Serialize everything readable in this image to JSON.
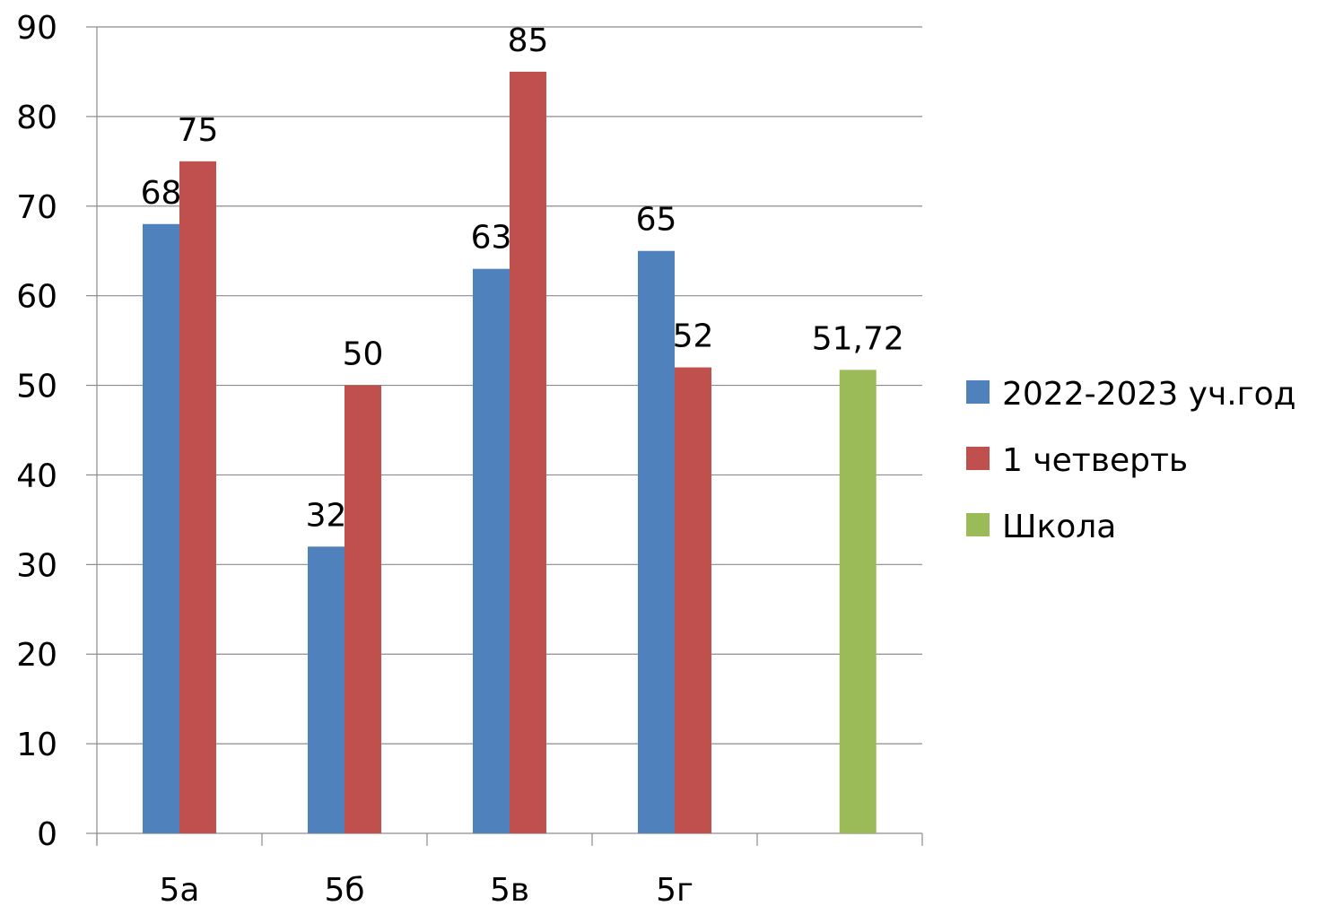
{
  "chart_data": {
    "type": "bar",
    "title": "",
    "xlabel": "",
    "ylabel": "",
    "categories": [
      "5а",
      "5б",
      "5в",
      "5г",
      ""
    ],
    "series": [
      {
        "name": "2022-2023 уч.год",
        "color": "#4f81bd",
        "values": [
          68,
          32,
          63,
          65,
          null
        ],
        "labels": [
          "68",
          "32",
          "63",
          "65",
          ""
        ]
      },
      {
        "name": "1 четверть",
        "color": "#c0504d",
        "values": [
          75,
          50,
          85,
          52,
          null
        ],
        "labels": [
          "75",
          "50",
          "85",
          "52",
          ""
        ]
      },
      {
        "name": "Школа",
        "color": "#9bbb59",
        "values": [
          null,
          null,
          null,
          null,
          51.72
        ],
        "labels": [
          "",
          "",
          "",
          "",
          "51,72"
        ]
      }
    ],
    "ylim": [
      0,
      90
    ],
    "yticks": [
      "0",
      "10",
      "20",
      "30",
      "40",
      "50",
      "60",
      "70",
      "80",
      "90"
    ],
    "grid": true,
    "legend_position": "right"
  }
}
